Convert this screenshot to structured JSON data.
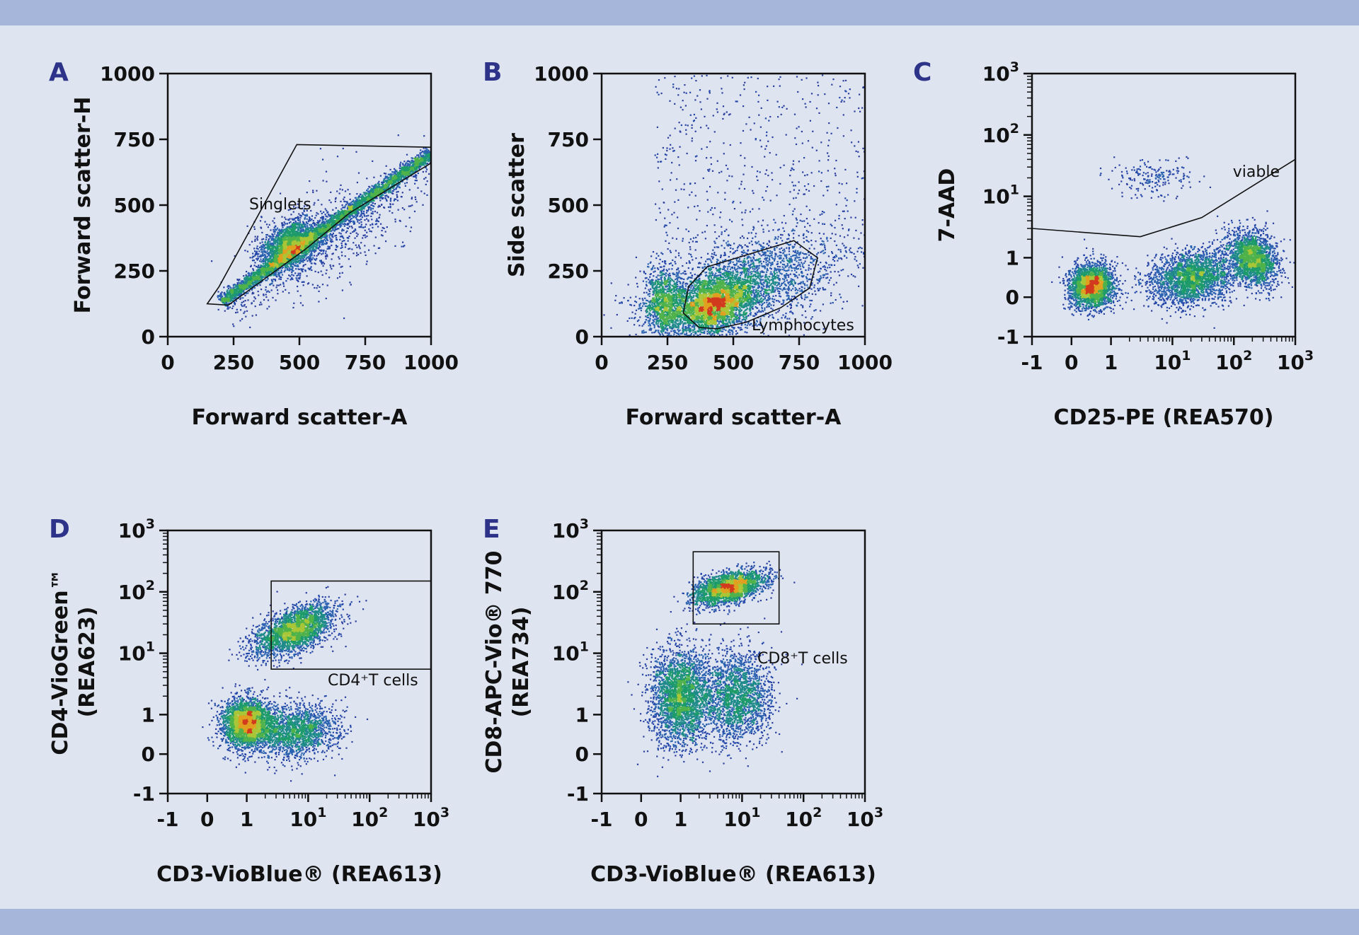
{
  "colors": {
    "background": "#dfe4f1",
    "band": "#a6b6da",
    "panel_letter": "#2c3388",
    "density_low": "#2448a8",
    "density_mid": "#1d9b6a",
    "density_high": "#e0a020",
    "density_peak": "#d23a1e"
  },
  "chart_data": [
    {
      "id": "A",
      "letter": "A",
      "type": "scatter",
      "xlabel": "Forward scatter-A",
      "ylabel": "Forward scatter-H",
      "xscale": "linear",
      "yscale": "linear",
      "xlim": [
        0,
        1000
      ],
      "ylim": [
        0,
        1000
      ],
      "xticks": [
        0,
        250,
        500,
        750,
        1000
      ],
      "yticks": [
        0,
        250,
        500,
        750,
        1000
      ],
      "xtick_labels": [
        "0",
        "250",
        "500",
        "750",
        "1000"
      ],
      "ytick_labels": [
        "0",
        "250",
        "500",
        "750",
        "1000"
      ],
      "gate": {
        "label": "Singlets",
        "shape": "polygon",
        "points": [
          [
            150,
            125
          ],
          [
            195,
            190
          ],
          [
            490,
            730
          ],
          [
            1000,
            720
          ],
          [
            1000,
            660
          ],
          [
            690,
            470
          ],
          [
            520,
            330
          ],
          [
            230,
            120
          ]
        ]
      },
      "populations": [
        {
          "kind": "band",
          "x0": 200,
          "y0": 135,
          "x1": 1000,
          "y1": 700,
          "spread": 14,
          "weight": 1.0
        },
        {
          "kind": "blob",
          "cx": 460,
          "cy": 350,
          "sx": 60,
          "sy": 40,
          "rot": 35,
          "weight": 0.5
        },
        {
          "kind": "blob",
          "cx": 620,
          "cy": 400,
          "sx": 160,
          "sy": 90,
          "rot": 35,
          "weight": 0.12,
          "sparse": true
        }
      ]
    },
    {
      "id": "B",
      "letter": "B",
      "type": "scatter",
      "xlabel": "Forward scatter-A",
      "ylabel": "Side scatter",
      "xscale": "linear",
      "yscale": "linear",
      "xlim": [
        0,
        1000
      ],
      "ylim": [
        0,
        1000
      ],
      "xticks": [
        0,
        250,
        500,
        750,
        1000
      ],
      "yticks": [
        0,
        250,
        500,
        750,
        1000
      ],
      "xtick_labels": [
        "0",
        "250",
        "500",
        "750",
        "1000"
      ],
      "ytick_labels": [
        "0",
        "250",
        "500",
        "750",
        "1000"
      ],
      "gate": {
        "label": "Lymphocytes",
        "shape": "polygon",
        "points": [
          [
            310,
            90
          ],
          [
            330,
            190
          ],
          [
            400,
            265
          ],
          [
            730,
            365
          ],
          [
            820,
            300
          ],
          [
            790,
            185
          ],
          [
            680,
            110
          ],
          [
            550,
            55
          ],
          [
            440,
            30
          ],
          [
            370,
            35
          ]
        ]
      },
      "populations": [
        {
          "kind": "blob",
          "cx": 430,
          "cy": 125,
          "sx": 80,
          "sy": 50,
          "rot": 25,
          "weight": 1.0
        },
        {
          "kind": "blob",
          "cx": 550,
          "cy": 200,
          "sx": 190,
          "sy": 80,
          "rot": 18,
          "weight": 0.8
        },
        {
          "kind": "blob",
          "cx": 240,
          "cy": 130,
          "sx": 40,
          "sy": 70,
          "rot": 0,
          "weight": 0.4
        },
        {
          "kind": "uniform",
          "x0": 200,
          "x1": 1000,
          "y0": 300,
          "y1": 1000,
          "weight": 0.18,
          "sparse": true
        }
      ]
    },
    {
      "id": "C",
      "letter": "C",
      "type": "scatter",
      "xlabel": "CD25-PE (REA570)",
      "ylabel": "7-AAD",
      "xscale": "biexponential",
      "yscale": "biexponential",
      "xlim": [
        -1,
        1000
      ],
      "ylim": [
        -1,
        1000
      ],
      "xticks": [
        -1,
        0,
        1,
        10,
        100,
        1000
      ],
      "yticks": [
        -1,
        0,
        1,
        10,
        100,
        1000
      ],
      "xtick_labels": [
        "-1",
        "0",
        "1",
        "10¹",
        "10²",
        "10³"
      ],
      "ytick_labels": [
        "-1",
        "0",
        "1",
        "10¹",
        "10²",
        "10³"
      ],
      "gate": {
        "label": "viable",
        "shape": "polyline",
        "points": [
          [
            -1,
            3
          ],
          [
            3,
            2.2
          ],
          [
            30,
            4.5
          ],
          [
            1000,
            40
          ]
        ]
      },
      "populations": [
        {
          "kind": "blob",
          "cx": 0.5,
          "cy": 0.3,
          "sx": 0.6,
          "sy": 0.6,
          "rot": 0,
          "weight": 1.0
        },
        {
          "kind": "blob",
          "cx": 20,
          "cy": 0.5,
          "sx": 1.2,
          "sy": 0.7,
          "rot": 10,
          "weight": 1.0
        },
        {
          "kind": "blob",
          "cx": 200,
          "cy": 1.0,
          "sx": 0.6,
          "sy": 0.8,
          "rot": 30,
          "weight": 0.8
        },
        {
          "kind": "blob",
          "cx": 5,
          "cy": 20,
          "sx": 1.0,
          "sy": 0.5,
          "rot": 0,
          "weight": 0.08,
          "sparse": true
        }
      ]
    },
    {
      "id": "D",
      "letter": "D",
      "type": "scatter",
      "xlabel": "CD3-VioBlue® (REA613)",
      "ylabel_lines": [
        "CD4-VioGreen™",
        "(REA623)"
      ],
      "xscale": "biexponential",
      "yscale": "biexponential",
      "xlim": [
        -1,
        1000
      ],
      "ylim": [
        -1,
        1000
      ],
      "xticks": [
        -1,
        0,
        1,
        10,
        100,
        1000
      ],
      "yticks": [
        -1,
        0,
        1,
        10,
        100,
        1000
      ],
      "xtick_labels": [
        "-1",
        "0",
        "1",
        "10¹",
        "10²",
        "10³"
      ],
      "ytick_labels": [
        "-1",
        "0",
        "1",
        "10¹",
        "10²",
        "10³"
      ],
      "gate": {
        "label": "CD4⁺T cells",
        "shape": "rect",
        "points": [
          [
            2.5,
            5.5
          ],
          [
            1000,
            150
          ]
        ]
      },
      "populations": [
        {
          "kind": "blob",
          "cx": 1.0,
          "cy": 0.8,
          "sx": 0.7,
          "sy": 0.65,
          "rot": 0,
          "weight": 1.0
        },
        {
          "kind": "blob",
          "cx": 6,
          "cy": 0.6,
          "sx": 1.1,
          "sy": 0.7,
          "rot": 10,
          "weight": 0.6
        },
        {
          "kind": "blob",
          "cx": 6,
          "cy": 25,
          "sx": 1.2,
          "sy": 0.55,
          "rot": 25,
          "weight": 0.9
        }
      ]
    },
    {
      "id": "E",
      "letter": "E",
      "type": "scatter",
      "xlabel": "CD3-VioBlue® (REA613)",
      "ylabel_lines": [
        "CD8-APC-Vio® 770",
        "(REA734)"
      ],
      "xscale": "biexponential",
      "yscale": "biexponential",
      "xlim": [
        -1,
        1000
      ],
      "ylim": [
        -1,
        1000
      ],
      "xticks": [
        -1,
        0,
        1,
        10,
        100,
        1000
      ],
      "yticks": [
        -1,
        0,
        1,
        10,
        100,
        1000
      ],
      "xtick_labels": [
        "-1",
        "0",
        "1",
        "10¹",
        "10²",
        "10³"
      ],
      "ytick_labels": [
        "-1",
        "0",
        "1",
        "10¹",
        "10²",
        "10³"
      ],
      "gate": {
        "label": "CD8⁺T cells",
        "shape": "rect",
        "points": [
          [
            1.6,
            30
          ],
          [
            40,
            450
          ]
        ]
      },
      "populations": [
        {
          "kind": "blob",
          "cx": 6,
          "cy": 120,
          "sx": 1.0,
          "sy": 0.4,
          "rot": 15,
          "weight": 0.8
        },
        {
          "kind": "blob",
          "cx": 1.0,
          "cy": 2.0,
          "sx": 0.8,
          "sy": 1.3,
          "rot": 0,
          "weight": 1.0
        },
        {
          "kind": "blob",
          "cx": 8,
          "cy": 2.0,
          "sx": 0.9,
          "sy": 1.2,
          "rot": 0,
          "weight": 0.7
        }
      ]
    }
  ]
}
